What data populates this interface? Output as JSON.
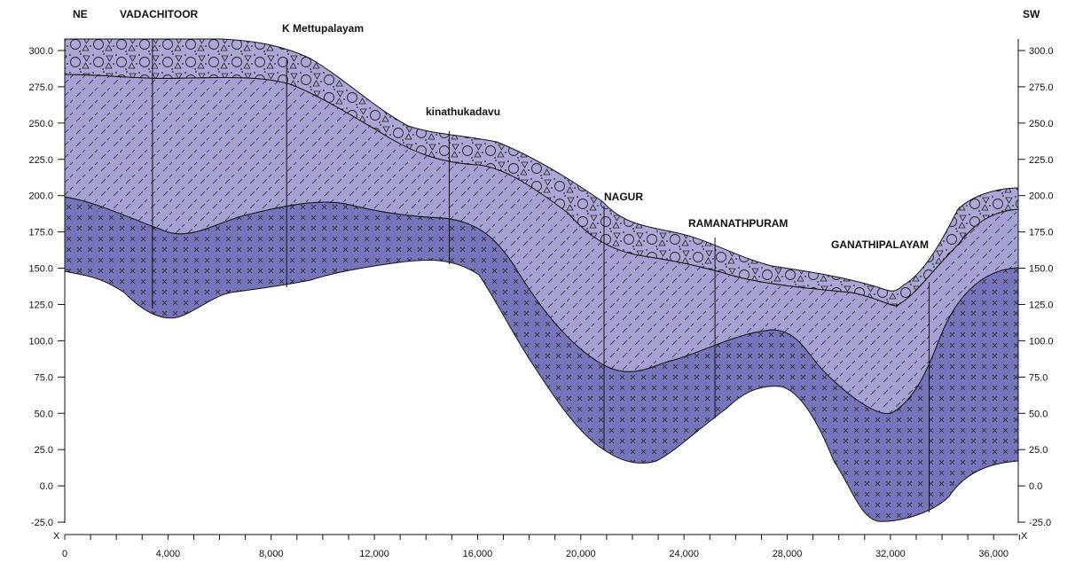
{
  "section": {
    "left_direction": "NE",
    "right_direction": "SW",
    "axis_end_label": "X",
    "colors": {
      "gravel": "#a9a8d6",
      "weathered": "#a4a2d4",
      "bedrock": "#7674ba",
      "outline": "#111111"
    },
    "layers": [
      {
        "name": "gravel-layer",
        "pattern": "circles-triangles"
      },
      {
        "name": "weathered-layer",
        "pattern": "dashes"
      },
      {
        "name": "bedrock-layer",
        "pattern": "crosses"
      }
    ],
    "y_ticks": [
      "300.0",
      "275.0",
      "250.0",
      "225.0",
      "200.0",
      "175.0",
      "150.0",
      "125.0",
      "100.0",
      "75.0",
      "50.0",
      "25.0",
      "0.0",
      "-25.0"
    ],
    "x_ticks": [
      "0",
      "4,000",
      "8,000",
      "12,000",
      "16,000",
      "20,000",
      "24,000",
      "28,000",
      "32,000",
      "36,000"
    ],
    "y_tick_values": [
      300,
      275,
      250,
      225,
      200,
      175,
      150,
      125,
      100,
      75,
      50,
      25,
      0,
      -25
    ],
    "x_tick_values": [
      0,
      4000,
      8000,
      12000,
      16000,
      20000,
      24000,
      28000,
      32000,
      36000
    ],
    "wells": [
      {
        "label": "VADACHITOOR",
        "x": 3400
      },
      {
        "label": "K Mettupalayam",
        "x": 8600
      },
      {
        "label": "kinathukadavu",
        "x": 14900
      },
      {
        "label": "NAGUR",
        "x": 20900
      },
      {
        "label": "RAMANATHPURAM",
        "x": 25200
      },
      {
        "label": "GANATHIPALAYAM",
        "x": 33500
      }
    ]
  }
}
